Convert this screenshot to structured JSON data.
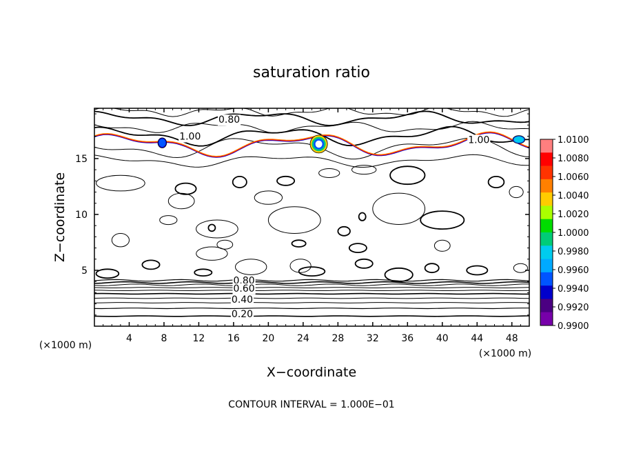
{
  "chart_data": {
    "type": "contour",
    "title": "saturation ratio",
    "xlabel": "X−coordinate",
    "ylabel": "Z−coordinate",
    "x_unit": "(×1000 m)",
    "y_unit": "(×1000 m)",
    "xlim": [
      0,
      50
    ],
    "ylim": [
      0,
      19.5
    ],
    "xticks": [
      4,
      8,
      12,
      16,
      20,
      24,
      28,
      32,
      36,
      40,
      44,
      48
    ],
    "xtick_labels": [
      "4",
      "8",
      "12",
      "16",
      "20",
      "24",
      "28",
      "32",
      "36",
      "40",
      "44",
      "48"
    ],
    "yticks": [
      5,
      10,
      15
    ],
    "ytick_labels": [
      "5",
      "10",
      "15"
    ],
    "footer": "CONTOUR INTERVAL = 1.000E−01",
    "contour_labels": [
      {
        "text": "0.80",
        "x": 15.5,
        "y": 18.5
      },
      {
        "text": "1.00",
        "x": 11.0,
        "y": 17.0
      },
      {
        "text": "1.00",
        "x": 44.2,
        "y": 16.7
      },
      {
        "text": "0.80",
        "x": 17.2,
        "y": 4.1
      },
      {
        "text": "0.60",
        "x": 17.2,
        "y": 3.4
      },
      {
        "text": "0.40",
        "x": 17.0,
        "y": 2.4
      },
      {
        "text": "0.20",
        "x": 17.0,
        "y": 1.1
      }
    ],
    "colorbar": {
      "labels": [
        "1.0100",
        "1.0080",
        "1.0060",
        "1.0040",
        "1.0020",
        "1.0000",
        "0.9980",
        "0.9960",
        "0.9940",
        "0.9920",
        "0.9900"
      ],
      "colors": [
        "#ff7f7f",
        "#ff0000",
        "#ff3300",
        "#ff8000",
        "#ffcc00",
        "#aaff00",
        "#00dd00",
        "#00cc77",
        "#00ccee",
        "#00aaff",
        "#0055ff",
        "#0000cc",
        "#4b0082",
        "#7700aa"
      ]
    }
  }
}
